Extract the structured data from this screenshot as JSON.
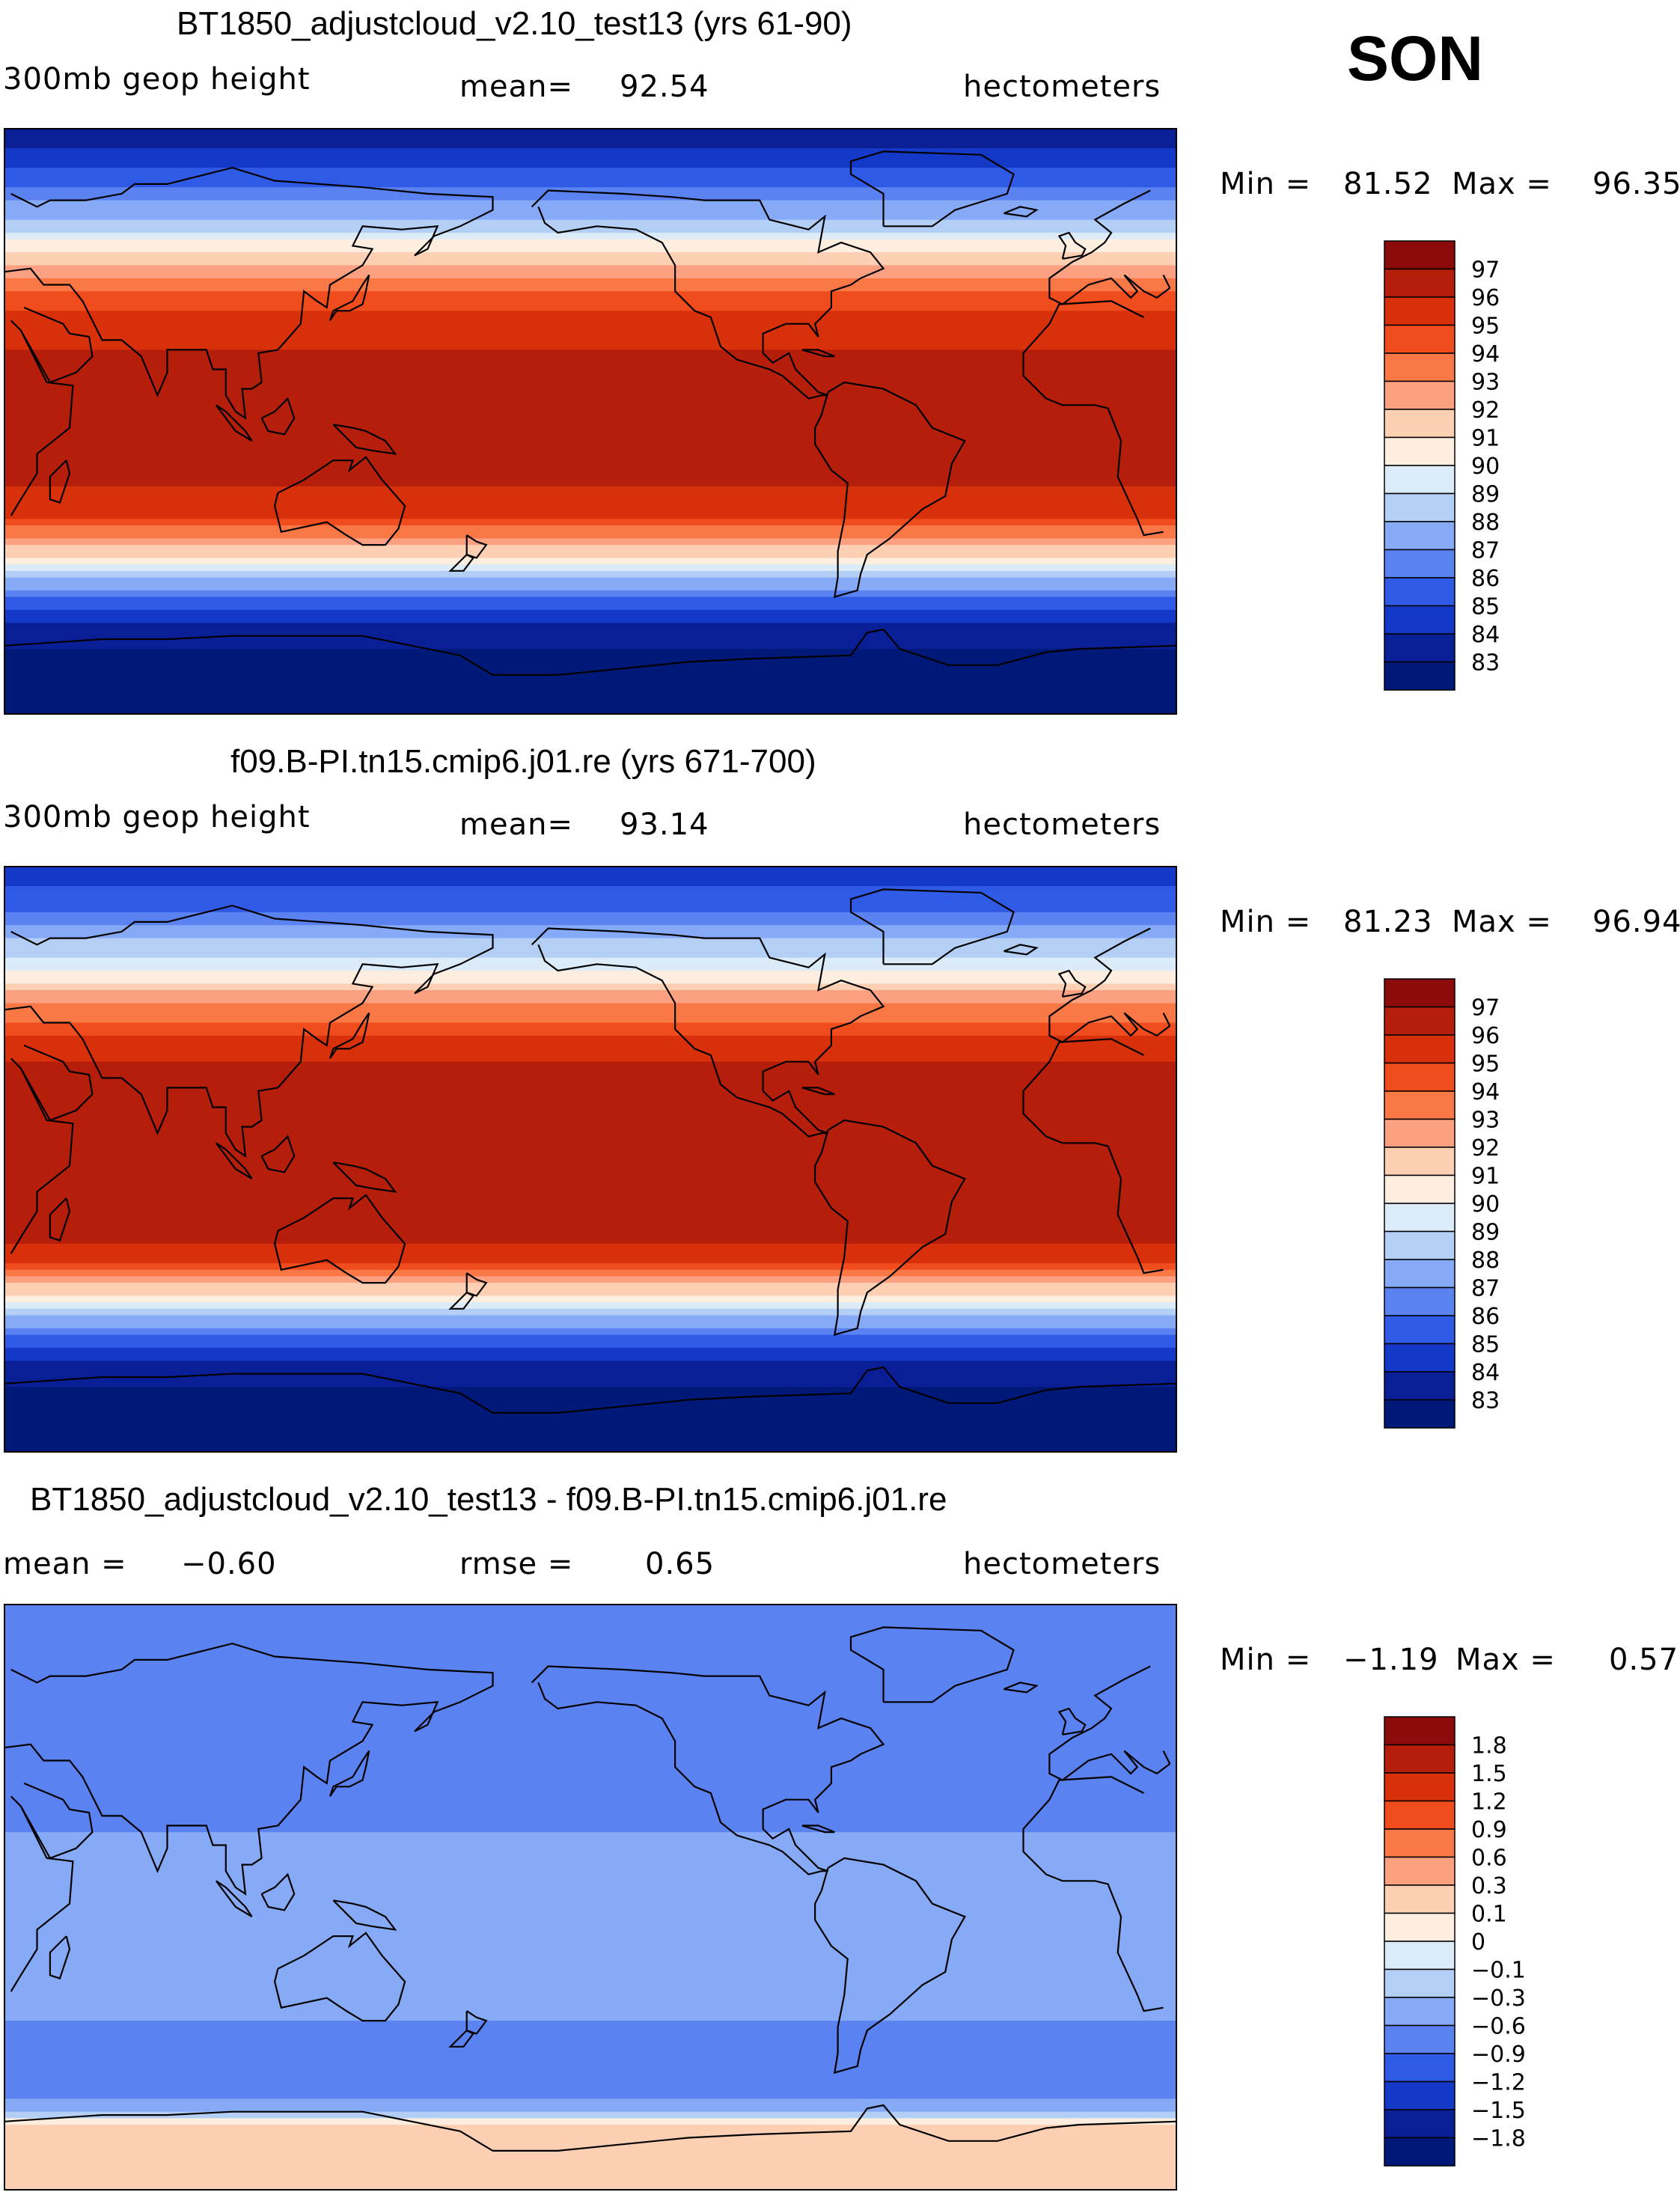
{
  "season": "SON",
  "units_text": "hectometers",
  "chart_data": [
    {
      "type": "heatmap",
      "id": "model",
      "title": "BT1850_adjustcloud_v2.10_test13 (yrs 61-90)",
      "field_label": "300mb geop height",
      "mean_label": "mean=",
      "mean_value": "92.54",
      "units": "hectometers",
      "min_label": "Min =",
      "min_value": "81.52",
      "max_label": "Max =",
      "max_value": "96.35",
      "colorbar": {
        "levels": [
          "97",
          "96",
          "95",
          "94",
          "93",
          "92",
          "91",
          "90",
          "89",
          "88",
          "87",
          "86",
          "85",
          "84",
          "83"
        ],
        "colors": [
          "#8b0a0a",
          "#b41e0a",
          "#d7300a",
          "#f04c1e",
          "#fa7846",
          "#fca082",
          "#fdd0b4",
          "#fdeee0",
          "#dcebf8",
          "#b4cff5",
          "#86aaf5",
          "#5a82f0",
          "#2f5ae6",
          "#1438c8",
          "#0a1e96",
          "#001978"
        ]
      },
      "bands": [
        {
          "lat": 90,
          "value": 83.2
        },
        {
          "lat": 75,
          "value": 85.3
        },
        {
          "lat": 60,
          "value": 88.6
        },
        {
          "lat": 50,
          "value": 91.5
        },
        {
          "lat": 40,
          "value": 94.0
        },
        {
          "lat": 30,
          "value": 95.5
        },
        {
          "lat": 20,
          "value": 96.1
        },
        {
          "lat": 0,
          "value": 96.3
        },
        {
          "lat": -20,
          "value": 96.0
        },
        {
          "lat": -30,
          "value": 95.0
        },
        {
          "lat": -40,
          "value": 91.5
        },
        {
          "lat": -50,
          "value": 87.5
        },
        {
          "lat": -60,
          "value": 84.3
        },
        {
          "lat": -75,
          "value": 82.5
        },
        {
          "lat": -90,
          "value": 81.6
        }
      ]
    },
    {
      "type": "heatmap",
      "id": "control",
      "title": "f09.B-PI.tn15.cmip6.j01.re (yrs 671-700)",
      "field_label": "300mb geop height",
      "mean_label": "mean=",
      "mean_value": "93.14",
      "units": "hectometers",
      "min_label": "Min =",
      "min_value": "81.23",
      "max_label": "Max =",
      "max_value": "96.94",
      "colorbar": {
        "levels": [
          "97",
          "96",
          "95",
          "94",
          "93",
          "92",
          "91",
          "90",
          "89",
          "88",
          "87",
          "86",
          "85",
          "84",
          "83"
        ],
        "colors": [
          "#8b0a0a",
          "#b41e0a",
          "#d7300a",
          "#f04c1e",
          "#fa7846",
          "#fca082",
          "#fdd0b4",
          "#fdeee0",
          "#dcebf8",
          "#b4cff5",
          "#86aaf5",
          "#5a82f0",
          "#2f5ae6",
          "#1438c8",
          "#0a1e96",
          "#001978"
        ]
      },
      "bands": [
        {
          "lat": 90,
          "value": 84.0
        },
        {
          "lat": 75,
          "value": 86.3
        },
        {
          "lat": 60,
          "value": 89.5
        },
        {
          "lat": 50,
          "value": 92.3
        },
        {
          "lat": 40,
          "value": 94.7
        },
        {
          "lat": 30,
          "value": 96.1
        },
        {
          "lat": 20,
          "value": 96.7
        },
        {
          "lat": 0,
          "value": 96.9
        },
        {
          "lat": -20,
          "value": 96.6
        },
        {
          "lat": -30,
          "value": 95.6
        },
        {
          "lat": -40,
          "value": 91.5
        },
        {
          "lat": -50,
          "value": 87.5
        },
        {
          "lat": -60,
          "value": 84.3
        },
        {
          "lat": -75,
          "value": 82.2
        },
        {
          "lat": -90,
          "value": 81.3
        }
      ]
    },
    {
      "type": "heatmap",
      "id": "difference",
      "title": "BT1850_adjustcloud_v2.10_test13 - f09.B-PI.tn15.cmip6.j01.re",
      "field_label": "mean =",
      "mean_label": "",
      "mean_value": "−0.60",
      "rmse_label": "rmse =",
      "rmse_value": "0.65",
      "units": "hectometers",
      "min_label": "Min =",
      "min_value": "−1.19",
      "max_label": "Max =",
      "max_value": "0.57",
      "colorbar": {
        "levels": [
          "1.8",
          "1.5",
          "1.2",
          "0.9",
          "0.6",
          "0.3",
          "0.1",
          "0",
          "−0.1",
          "−0.3",
          "−0.6",
          "−0.9",
          "−1.2",
          "−1.5",
          "−1.8"
        ],
        "colors": [
          "#8b0a0a",
          "#b41e0a",
          "#d7300a",
          "#f04c1e",
          "#fa7846",
          "#fca082",
          "#fdd0b4",
          "#fdeee0",
          "#dcebf8",
          "#b4cff5",
          "#86aaf5",
          "#5a82f0",
          "#2f5ae6",
          "#1438c8",
          "#0a1e96",
          "#001978"
        ]
      },
      "bands": [
        {
          "lat": 90,
          "value": -0.75
        },
        {
          "lat": 70,
          "value": -0.7
        },
        {
          "lat": 50,
          "value": -0.85
        },
        {
          "lat": 30,
          "value": -0.7
        },
        {
          "lat": 10,
          "value": -0.5
        },
        {
          "lat": -10,
          "value": -0.55
        },
        {
          "lat": -30,
          "value": -0.5
        },
        {
          "lat": -50,
          "value": -0.75
        },
        {
          "lat": -62,
          "value": -0.6
        },
        {
          "lat": -70,
          "value": 0.15
        },
        {
          "lat": -90,
          "value": 0.25
        }
      ]
    }
  ]
}
